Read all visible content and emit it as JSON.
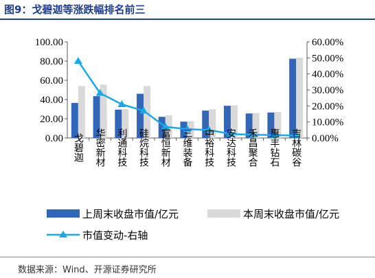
{
  "figure": {
    "title": "图9：戈碧迦等涨跌幅排名前三",
    "source": "数据来源：Wind、开源证券研究所"
  },
  "colors": {
    "title": "#1f3f8c",
    "last_week_bar": "#3266b7",
    "this_week_bar": "#d9d9d9",
    "line": "#1aa9e6"
  },
  "chart_data": {
    "type": "bar",
    "categories": [
      "戈碧迦",
      "华密新材",
      "利通科技",
      "硅烷科技",
      "富恒新材",
      "三维装备",
      "中裕科技",
      "安达科技",
      "禾昌聚合",
      "惠丰钻石",
      "吉林碳谷"
    ],
    "series": [
      {
        "name": "上周末收盘市值/亿元",
        "type": "bar",
        "axis": "left",
        "values": [
          36.5,
          43.5,
          29.5,
          46.0,
          22.0,
          17.0,
          28.5,
          33.5,
          25.5,
          26.5,
          82.5
        ]
      },
      {
        "name": "本周末收盘市值/亿元",
        "type": "bar",
        "axis": "left",
        "values": [
          54.0,
          55.5,
          30.0,
          54.0,
          23.5,
          17.5,
          30.0,
          34.0,
          26.0,
          27.0,
          83.5
        ]
      },
      {
        "name": "市值变动-右轴",
        "type": "line",
        "axis": "right",
        "values": [
          48.0,
          28.0,
          21.0,
          17.0,
          7.0,
          5.5,
          5.0,
          2.5,
          2.0,
          1.8,
          1.5
        ]
      }
    ],
    "y_left": {
      "min": 0,
      "max": 100,
      "ticks": [
        "0.00",
        "20.00",
        "40.00",
        "60.00",
        "80.00",
        "100.00"
      ]
    },
    "y_right": {
      "min": 0,
      "max": 60,
      "ticks": [
        "0.00%",
        "10.00%",
        "20.00%",
        "30.00%",
        "40.00%",
        "50.00%",
        "60.00%"
      ]
    },
    "grid": false,
    "legend_position": "bottom"
  }
}
